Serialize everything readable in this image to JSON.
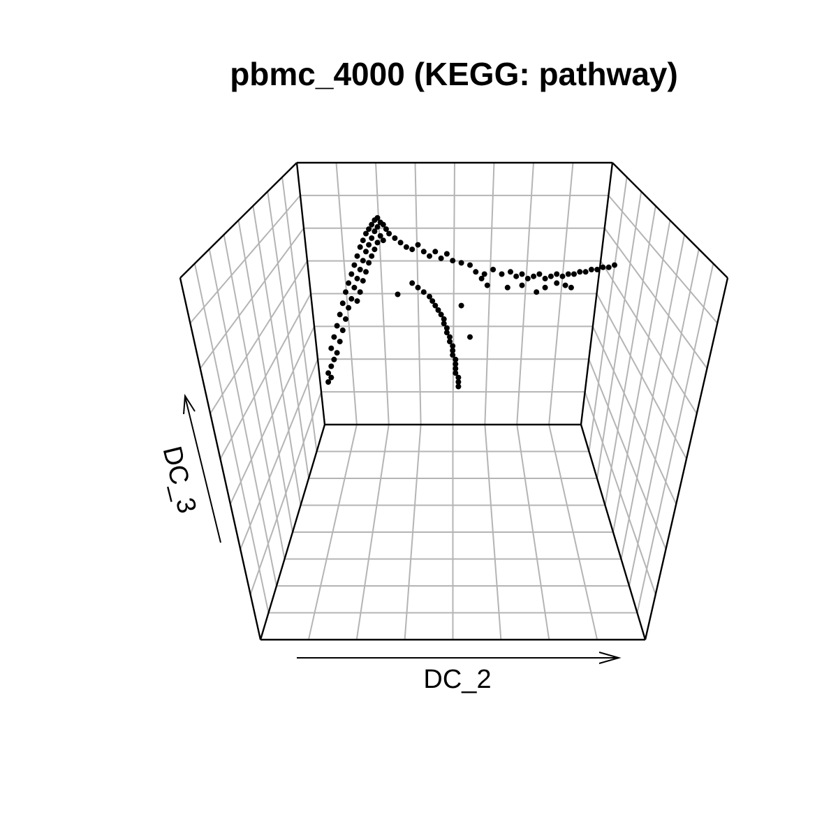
{
  "chart_data": {
    "type": "scatter",
    "projection": "3d",
    "title": "pbmc_4000 (KEGG: pathway)",
    "xlabel": "DC_2",
    "ylabel": "DC_3",
    "axis_ranges": {
      "DC_2": [
        0,
        1
      ],
      "DC_3": [
        0,
        1
      ]
    },
    "grid": true,
    "legend": "none",
    "colors": {
      "points": "#000000",
      "grid": "#b4b4b4",
      "frame": "#000000",
      "background": "#ffffff"
    },
    "series": [
      {
        "values": [
          {
            "x": 0.18,
            "y": 0.91
          },
          {
            "x": 0.17,
            "y": 0.9
          },
          {
            "x": 0.19,
            "y": 0.89
          },
          {
            "x": 0.16,
            "y": 0.88
          },
          {
            "x": 0.18,
            "y": 0.87
          },
          {
            "x": 0.2,
            "y": 0.88
          },
          {
            "x": 0.15,
            "y": 0.86
          },
          {
            "x": 0.17,
            "y": 0.85
          },
          {
            "x": 0.21,
            "y": 0.86
          },
          {
            "x": 0.14,
            "y": 0.84
          },
          {
            "x": 0.19,
            "y": 0.83
          },
          {
            "x": 0.16,
            "y": 0.82
          },
          {
            "x": 0.22,
            "y": 0.84
          },
          {
            "x": 0.13,
            "y": 0.81
          },
          {
            "x": 0.18,
            "y": 0.8
          },
          {
            "x": 0.15,
            "y": 0.79
          },
          {
            "x": 0.2,
            "y": 0.81
          },
          {
            "x": 0.12,
            "y": 0.78
          },
          {
            "x": 0.17,
            "y": 0.77
          },
          {
            "x": 0.14,
            "y": 0.76
          },
          {
            "x": 0.24,
            "y": 0.82
          },
          {
            "x": 0.11,
            "y": 0.74
          },
          {
            "x": 0.16,
            "y": 0.74
          },
          {
            "x": 0.13,
            "y": 0.72
          },
          {
            "x": 0.1,
            "y": 0.7
          },
          {
            "x": 0.15,
            "y": 0.71
          },
          {
            "x": 0.12,
            "y": 0.68
          },
          {
            "x": 0.09,
            "y": 0.66
          },
          {
            "x": 0.14,
            "y": 0.67
          },
          {
            "x": 0.11,
            "y": 0.64
          },
          {
            "x": 0.08,
            "y": 0.62
          },
          {
            "x": 0.13,
            "y": 0.63
          },
          {
            "x": 0.1,
            "y": 0.6
          },
          {
            "x": 0.07,
            "y": 0.58
          },
          {
            "x": 0.12,
            "y": 0.58
          },
          {
            "x": 0.09,
            "y": 0.55
          },
          {
            "x": 0.06,
            "y": 0.53
          },
          {
            "x": 0.11,
            "y": 0.54
          },
          {
            "x": 0.08,
            "y": 0.51
          },
          {
            "x": 0.05,
            "y": 0.48
          },
          {
            "x": 0.07,
            "y": 0.46
          },
          {
            "x": 0.04,
            "y": 0.43
          },
          {
            "x": 0.06,
            "y": 0.41
          },
          {
            "x": 0.03,
            "y": 0.38
          },
          {
            "x": 0.05,
            "y": 0.36
          },
          {
            "x": 0.02,
            "y": 0.33
          },
          {
            "x": 0.04,
            "y": 0.31
          },
          {
            "x": 0.03,
            "y": 0.28
          },
          {
            "x": 0.02,
            "y": 0.25
          },
          {
            "x": 0.01,
            "y": 0.22
          },
          {
            "x": 0.02,
            "y": 0.2
          },
          {
            "x": 0.01,
            "y": 0.18
          },
          {
            "x": 0.26,
            "y": 0.8
          },
          {
            "x": 0.28,
            "y": 0.78
          },
          {
            "x": 0.3,
            "y": 0.77
          },
          {
            "x": 0.32,
            "y": 0.79
          },
          {
            "x": 0.34,
            "y": 0.76
          },
          {
            "x": 0.36,
            "y": 0.74
          },
          {
            "x": 0.38,
            "y": 0.76
          },
          {
            "x": 0.4,
            "y": 0.73
          },
          {
            "x": 0.42,
            "y": 0.75
          },
          {
            "x": 0.44,
            "y": 0.72
          },
          {
            "x": 0.47,
            "y": 0.71
          },
          {
            "x": 0.5,
            "y": 0.7
          },
          {
            "x": 0.52,
            "y": 0.67
          },
          {
            "x": 0.55,
            "y": 0.66
          },
          {
            "x": 0.58,
            "y": 0.68
          },
          {
            "x": 0.61,
            "y": 0.66
          },
          {
            "x": 0.64,
            "y": 0.67
          },
          {
            "x": 0.66,
            "y": 0.65
          },
          {
            "x": 0.68,
            "y": 0.66
          },
          {
            "x": 0.7,
            "y": 0.64
          },
          {
            "x": 0.72,
            "y": 0.65
          },
          {
            "x": 0.74,
            "y": 0.66
          },
          {
            "x": 0.76,
            "y": 0.64
          },
          {
            "x": 0.78,
            "y": 0.65
          },
          {
            "x": 0.8,
            "y": 0.66
          },
          {
            "x": 0.82,
            "y": 0.65
          },
          {
            "x": 0.84,
            "y": 0.66
          },
          {
            "x": 0.86,
            "y": 0.66
          },
          {
            "x": 0.88,
            "y": 0.67
          },
          {
            "x": 0.9,
            "y": 0.67
          },
          {
            "x": 0.92,
            "y": 0.68
          },
          {
            "x": 0.94,
            "y": 0.68
          },
          {
            "x": 0.96,
            "y": 0.69
          },
          {
            "x": 0.98,
            "y": 0.69
          },
          {
            "x": 1.0,
            "y": 0.7
          },
          {
            "x": 0.56,
            "y": 0.61
          },
          {
            "x": 0.63,
            "y": 0.6
          },
          {
            "x": 0.68,
            "y": 0.61
          },
          {
            "x": 0.73,
            "y": 0.58
          },
          {
            "x": 0.76,
            "y": 0.6
          },
          {
            "x": 0.8,
            "y": 0.62
          },
          {
            "x": 0.83,
            "y": 0.61
          },
          {
            "x": 0.85,
            "y": 0.6
          },
          {
            "x": 0.54,
            "y": 0.64
          },
          {
            "x": 0.3,
            "y": 0.62
          },
          {
            "x": 0.32,
            "y": 0.6
          },
          {
            "x": 0.34,
            "y": 0.58
          },
          {
            "x": 0.36,
            "y": 0.56
          },
          {
            "x": 0.37,
            "y": 0.54
          },
          {
            "x": 0.38,
            "y": 0.52
          },
          {
            "x": 0.39,
            "y": 0.5
          },
          {
            "x": 0.4,
            "y": 0.48
          },
          {
            "x": 0.41,
            "y": 0.46
          },
          {
            "x": 0.41,
            "y": 0.44
          },
          {
            "x": 0.42,
            "y": 0.42
          },
          {
            "x": 0.42,
            "y": 0.4
          },
          {
            "x": 0.43,
            "y": 0.38
          },
          {
            "x": 0.43,
            "y": 0.36
          },
          {
            "x": 0.44,
            "y": 0.34
          },
          {
            "x": 0.44,
            "y": 0.32
          },
          {
            "x": 0.44,
            "y": 0.3
          },
          {
            "x": 0.45,
            "y": 0.28
          },
          {
            "x": 0.45,
            "y": 0.26
          },
          {
            "x": 0.45,
            "y": 0.24
          },
          {
            "x": 0.45,
            "y": 0.22
          },
          {
            "x": 0.46,
            "y": 0.2
          },
          {
            "x": 0.46,
            "y": 0.18
          },
          {
            "x": 0.46,
            "y": 0.16
          },
          {
            "x": 0.47,
            "y": 0.52
          },
          {
            "x": 0.5,
            "y": 0.38
          },
          {
            "x": 0.25,
            "y": 0.57
          }
        ]
      }
    ]
  }
}
